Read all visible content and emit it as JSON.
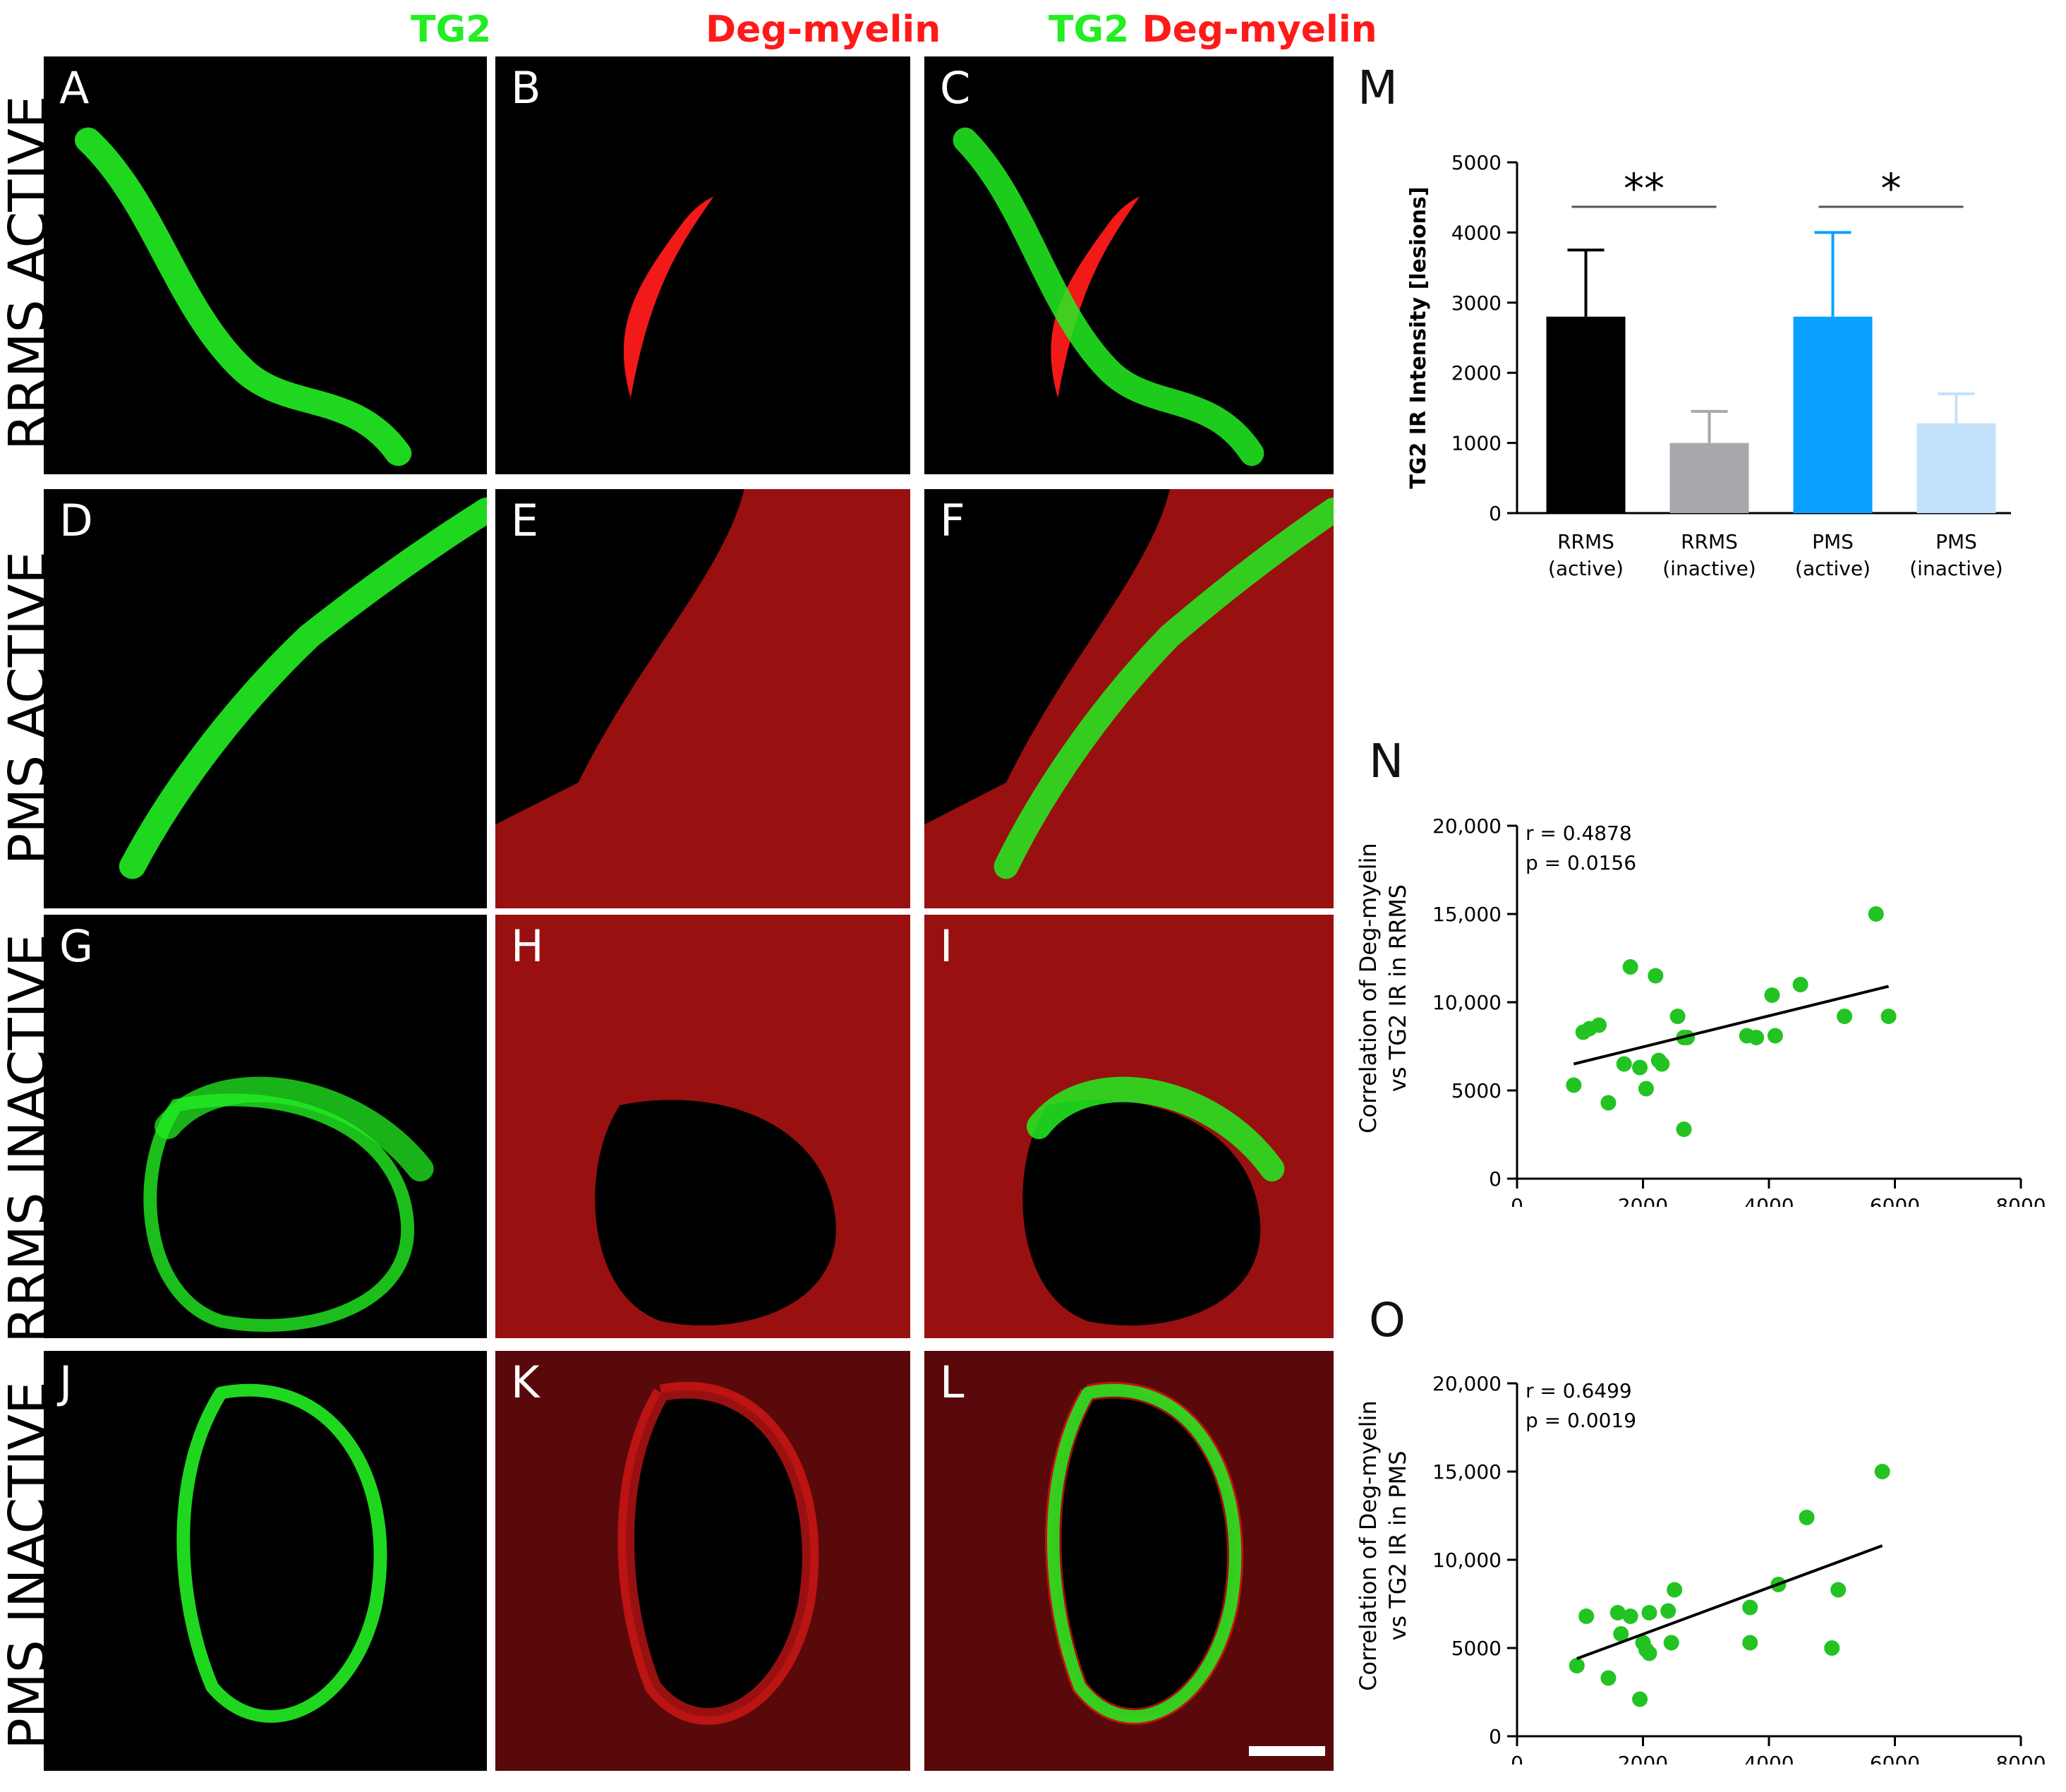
{
  "column_headers": {
    "tg2": "TG2",
    "deg": "Deg-myelin",
    "merge_tg2": "TG2",
    "merge_deg": "Deg-myelin"
  },
  "row_labels": [
    "RRMS ACTIVE",
    "PMS ACTIVE",
    "RRMS INACTIVE",
    "PMS INACTIVE"
  ],
  "panel_letters": [
    "A",
    "B",
    "C",
    "D",
    "E",
    "F",
    "G",
    "H",
    "I",
    "J",
    "K",
    "L"
  ],
  "figure_letters": {
    "m": "M",
    "n": "N",
    "o": "O"
  },
  "colors": {
    "tg2": "#22ee22",
    "deg": "#ff1a1a",
    "rrms_active": "#000000",
    "rrms_inactive": "#a6a8ab",
    "pms_active": "#0aa0ff",
    "pms_inactive": "#c3e1fb",
    "scatter": "#22c322"
  },
  "chart_data": [
    {
      "id": "M",
      "type": "bar",
      "ylabel": "TG2 IR Intensity [lesions]",
      "ylim": [
        0,
        5000
      ],
      "yticks": [
        "0",
        "1000",
        "2000",
        "3000",
        "4000",
        "5000"
      ],
      "categories": [
        [
          "RRMS",
          "(active)"
        ],
        [
          "RRMS",
          "(inactive)"
        ],
        [
          "PMS",
          "(active)"
        ],
        [
          "PMS",
          "(inactive)"
        ]
      ],
      "values": [
        2800,
        1000,
        2800,
        1280
      ],
      "errors": [
        950,
        450,
        1200,
        420
      ],
      "significance": [
        {
          "label": "**",
          "from": 0,
          "to": 1
        },
        {
          "label": "*",
          "from": 2,
          "to": 3
        }
      ]
    },
    {
      "id": "N",
      "type": "scatter",
      "ylabel": [
        "Correlation of Deg-myelin",
        "vs TG2 IR in RRMS"
      ],
      "xlim": [
        0,
        8000
      ],
      "ylim": [
        0,
        20000
      ],
      "xticks": [
        "0",
        "2000",
        "4000",
        "6000",
        "8000"
      ],
      "yticks": [
        "0",
        "5000",
        "10,000",
        "15,000",
        "20,000"
      ],
      "annotation": [
        "r = 0.4878",
        "p = 0.0156"
      ],
      "trend": [
        [
          900,
          6500
        ],
        [
          5900,
          10900
        ]
      ],
      "points": [
        [
          900,
          5300
        ],
        [
          1050,
          8300
        ],
        [
          1150,
          8500
        ],
        [
          1300,
          8700
        ],
        [
          1450,
          4300
        ],
        [
          1700,
          6500
        ],
        [
          1800,
          12000
        ],
        [
          1950,
          6300
        ],
        [
          2050,
          5100
        ],
        [
          2200,
          11500
        ],
        [
          2250,
          6700
        ],
        [
          2300,
          6500
        ],
        [
          2550,
          9200
        ],
        [
          2650,
          8000
        ],
        [
          2700,
          8000
        ],
        [
          2650,
          2800
        ],
        [
          3650,
          8100
        ],
        [
          3800,
          8000
        ],
        [
          4050,
          10400
        ],
        [
          4100,
          8100
        ],
        [
          4500,
          11000
        ],
        [
          5200,
          9200
        ],
        [
          5700,
          15000
        ],
        [
          5900,
          9200
        ]
      ]
    },
    {
      "id": "O",
      "type": "scatter",
      "ylabel": [
        "Correlation of Deg-myelin",
        "vs TG2 IR in PMS"
      ],
      "xlim": [
        0,
        8000
      ],
      "ylim": [
        0,
        20000
      ],
      "xticks": [
        "0",
        "2000",
        "4000",
        "6000",
        "8000"
      ],
      "yticks": [
        "0",
        "5000",
        "10,000",
        "15,000",
        "20,000"
      ],
      "annotation": [
        "r = 0.6499",
        "p = 0.0019"
      ],
      "trend": [
        [
          950,
          4400
        ],
        [
          5800,
          10800
        ]
      ],
      "points": [
        [
          950,
          4000
        ],
        [
          1100,
          6800
        ],
        [
          1450,
          3300
        ],
        [
          1600,
          7000
        ],
        [
          1650,
          5800
        ],
        [
          1800,
          6800
        ],
        [
          1950,
          2100
        ],
        [
          2000,
          5300
        ],
        [
          2050,
          4900
        ],
        [
          2100,
          4700
        ],
        [
          2100,
          7000
        ],
        [
          2400,
          7100
        ],
        [
          2450,
          5300
        ],
        [
          2500,
          8300
        ],
        [
          3700,
          7300
        ],
        [
          3700,
          5300
        ],
        [
          4150,
          8600
        ],
        [
          4600,
          12400
        ],
        [
          5000,
          5000
        ],
        [
          5100,
          8300
        ],
        [
          5800,
          15000
        ]
      ]
    }
  ]
}
